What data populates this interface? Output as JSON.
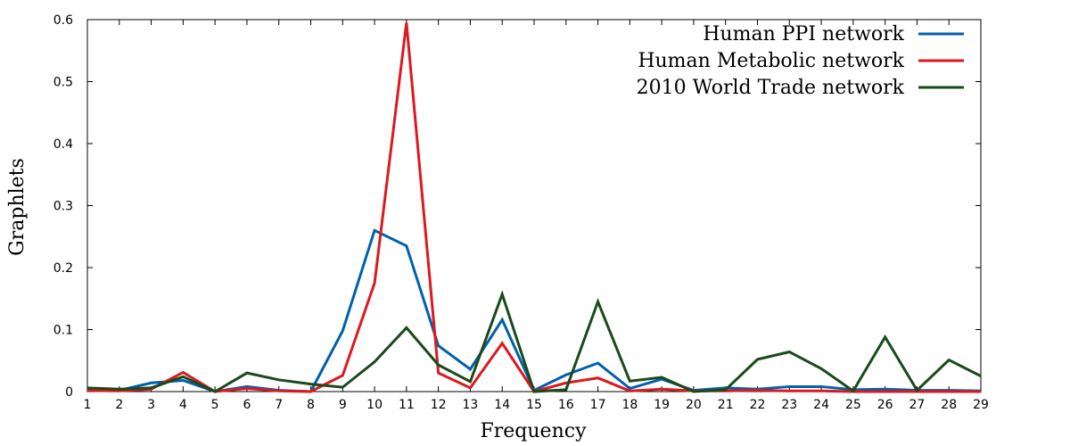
{
  "chart_data": {
    "type": "line",
    "xlabel": "Frequency",
    "ylabel": "Graphlets",
    "xlim": [
      1,
      29
    ],
    "ylim": [
      0,
      0.6
    ],
    "x_ticks": [
      "1",
      "2",
      "3",
      "4",
      "5",
      "6",
      "7",
      "8",
      "9",
      "10",
      "11",
      "12",
      "13",
      "14",
      "15",
      "16",
      "17",
      "18",
      "19",
      "20",
      "21",
      "22",
      "23",
      "24",
      "25",
      "26",
      "27",
      "28",
      "29"
    ],
    "y_ticks": [
      "0",
      "0.1",
      "0.2",
      "0.3",
      "0.4",
      "0.5",
      "0.6"
    ],
    "grid": false,
    "legend_position": "top-right",
    "x": [
      1,
      2,
      3,
      4,
      5,
      6,
      7,
      8,
      9,
      10,
      11,
      12,
      13,
      14,
      15,
      16,
      17,
      18,
      19,
      20,
      21,
      22,
      23,
      24,
      25,
      26,
      27,
      28,
      29
    ],
    "series": [
      {
        "name": "Human PPI network",
        "color": "#0060ad",
        "values": [
          0.003,
          0.002,
          0.014,
          0.018,
          0.0,
          0.008,
          0.002,
          0.0,
          0.098,
          0.26,
          0.235,
          0.074,
          0.036,
          0.116,
          0.002,
          0.027,
          0.046,
          0.005,
          0.02,
          0.002,
          0.006,
          0.004,
          0.008,
          0.008,
          0.003,
          0.004,
          0.002,
          0.002,
          0.001
        ]
      },
      {
        "name": "Human Metabolic network",
        "color": "#dd181f",
        "values": [
          0.002,
          0.001,
          0.004,
          0.031,
          0.0,
          0.005,
          0.001,
          0.0,
          0.026,
          0.175,
          0.595,
          0.03,
          0.006,
          0.078,
          0.0,
          0.014,
          0.022,
          0.001,
          0.004,
          0.001,
          0.001,
          0.002,
          0.001,
          0.001,
          0.0,
          0.0,
          0.0,
          0.0,
          0.0
        ]
      },
      {
        "name": "2010 World Trade network",
        "color": "#1a4a1a",
        "values": [
          0.006,
          0.004,
          0.006,
          0.024,
          0.0,
          0.03,
          0.019,
          0.012,
          0.007,
          0.048,
          0.103,
          0.043,
          0.016,
          0.157,
          0.0,
          0.003,
          0.145,
          0.017,
          0.023,
          0.0,
          0.003,
          0.052,
          0.064,
          0.037,
          0.001,
          0.088,
          0.002,
          0.051,
          0.025
        ]
      }
    ]
  }
}
